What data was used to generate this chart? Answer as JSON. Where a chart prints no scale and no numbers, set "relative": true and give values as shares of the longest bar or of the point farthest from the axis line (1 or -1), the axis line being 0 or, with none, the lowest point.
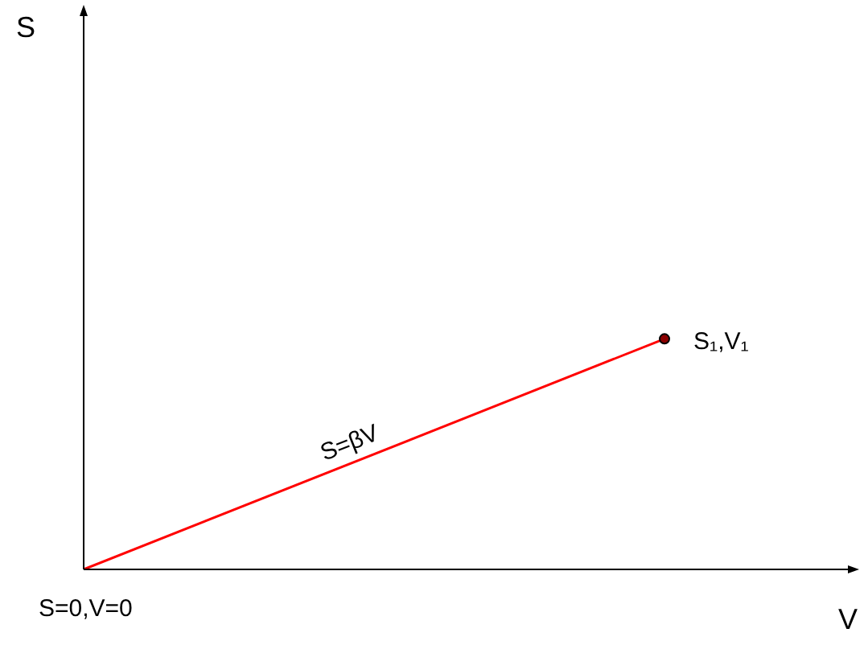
{
  "chart_data": {
    "type": "line",
    "relative": true,
    "xlabel": "V",
    "categories": [
      null,
      null
    ],
    "series": [
      {
        "name": "S=βV",
        "color": "#ff0000",
        "values": [
          0,
          1
        ]
      }
    ],
    "marker": "circle",
    "legend": false,
    "annotations": [
      "S=0,V=0",
      "S₁,V₁",
      "S"
    ]
  }
}
